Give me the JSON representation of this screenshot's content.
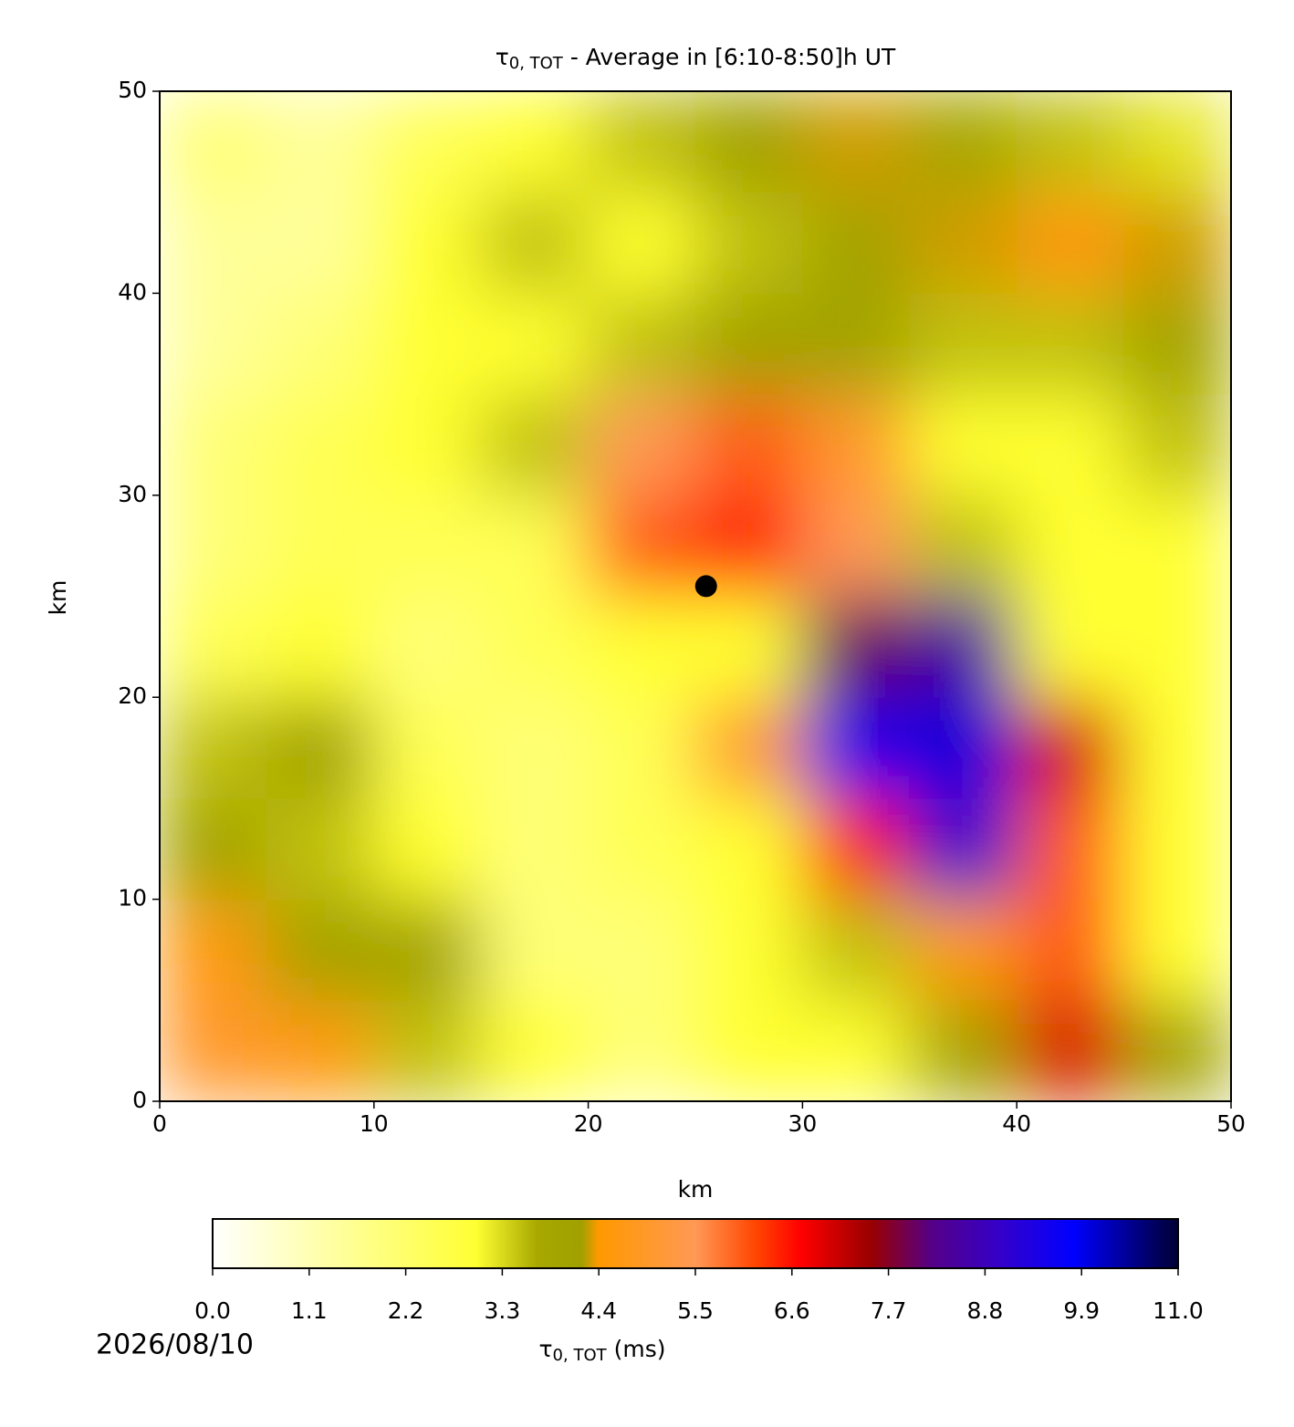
{
  "chart_data": {
    "type": "heatmap",
    "title": {
      "symbol": "τ",
      "subscript": "0, TOT",
      "text": "- Average in [6:10-8:50]h UT"
    },
    "xlabel": "km",
    "ylabel": "km",
    "xlim": [
      0,
      50
    ],
    "ylim": [
      0,
      50
    ],
    "xticks": [
      0,
      10,
      20,
      30,
      40,
      50
    ],
    "yticks": [
      0,
      10,
      20,
      30,
      40,
      50
    ],
    "x": [
      2.5,
      7.5,
      12.5,
      17.5,
      22.5,
      27.5,
      32.5,
      37.5,
      42.5,
      47.5
    ],
    "y": [
      2.5,
      7.5,
      12.5,
      17.5,
      22.5,
      27.5,
      32.5,
      37.5,
      42.5,
      47.5
    ],
    "z": [
      [
        5,
        4.5,
        3.5,
        3,
        2,
        3,
        3,
        4,
        7,
        4
      ],
      [
        4.5,
        4,
        4,
        2,
        2,
        3,
        3.5,
        4.5,
        6,
        3
      ],
      [
        4,
        3.5,
        3,
        2,
        2.5,
        3,
        6.5,
        9,
        6,
        3
      ],
      [
        3.5,
        4,
        2.5,
        2,
        2.5,
        5,
        9.5,
        10,
        7,
        3
      ],
      [
        2.5,
        3,
        2,
        2.5,
        3,
        3,
        8,
        8.5,
        3,
        3
      ],
      [
        2,
        2.5,
        2.5,
        2.5,
        6,
        6.5,
        5.5,
        3.5,
        3,
        3
      ],
      [
        2,
        2.5,
        3,
        3.5,
        5.5,
        6,
        5,
        3,
        3,
        3.5
      ],
      [
        1.5,
        2,
        3,
        3,
        3.5,
        4,
        4,
        3.5,
        3.5,
        4
      ],
      [
        1.5,
        1.5,
        3,
        3.5,
        3,
        3.5,
        4,
        4.3,
        4.5,
        4.3
      ],
      [
        2,
        1.5,
        2.5,
        3,
        3.5,
        4.2,
        4.3,
        3.8,
        3.5,
        3.2
      ]
    ],
    "marker": {
      "x": 25.5,
      "y": 25.5,
      "color": "#000000"
    },
    "colormap": [
      {
        "value": 0,
        "color": "#ffffff"
      },
      {
        "value": 1.5,
        "color": "#ffff99"
      },
      {
        "value": 3,
        "color": "#ffff33"
      },
      {
        "value": 3.7,
        "color": "#a8a800"
      },
      {
        "value": 4.2,
        "color": "#a0a000"
      },
      {
        "value": 4.4,
        "color": "#ff9900"
      },
      {
        "value": 5.5,
        "color": "#ff9955"
      },
      {
        "value": 6.2,
        "color": "#ff4400"
      },
      {
        "value": 6.7,
        "color": "#ff0000"
      },
      {
        "value": 7.5,
        "color": "#990000"
      },
      {
        "value": 8.2,
        "color": "#550088"
      },
      {
        "value": 9.0,
        "color": "#3300cc"
      },
      {
        "value": 9.8,
        "color": "#0000ff"
      },
      {
        "value": 11,
        "color": "#000033"
      }
    ],
    "colorbar": {
      "label_symbol": "τ",
      "label_subscript": "0, TOT",
      "label_unit": "(ms)",
      "lim": [
        0,
        11
      ],
      "ticks": [
        {
          "value": 0,
          "label": "0.0"
        },
        1.1,
        2.2,
        3.3,
        4.4,
        5.5,
        6.6,
        7.7,
        8.8,
        9.9,
        {
          "value": 11,
          "label": "11.0"
        }
      ]
    },
    "footnote": "2026/08/10"
  }
}
